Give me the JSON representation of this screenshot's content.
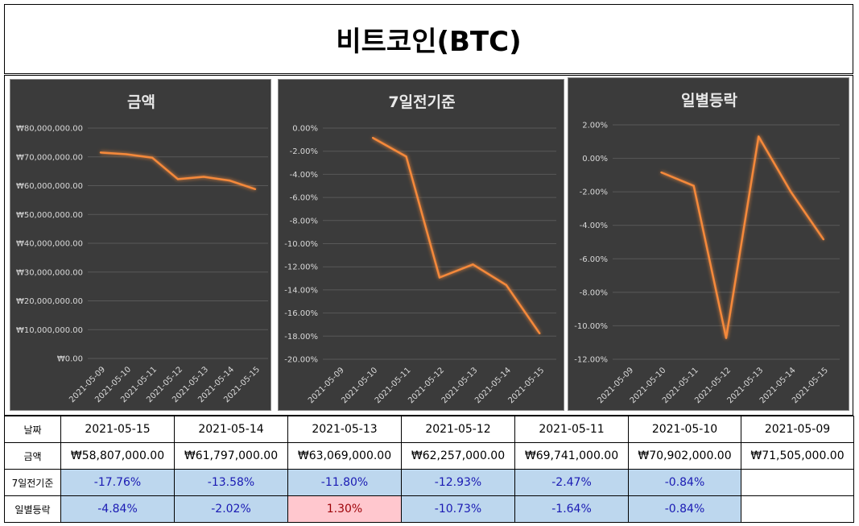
{
  "page_title": "비트코인(BTC)",
  "table": {
    "date_label": "날짜",
    "amount_label": "금액",
    "week_label": "7일전기준",
    "daily_label": "일별등락",
    "dates": [
      "2021-05-15",
      "2021-05-14",
      "2021-05-13",
      "2021-05-12",
      "2021-05-11",
      "2021-05-10",
      "2021-05-09"
    ],
    "amounts": [
      "₩58,807,000.00",
      "₩61,797,000.00",
      "₩63,069,000.00",
      "₩62,257,000.00",
      "₩69,741,000.00",
      "₩70,902,000.00",
      "₩71,505,000.00"
    ],
    "week_change": [
      "-17.76%",
      "-13.58%",
      "-11.80%",
      "-12.93%",
      "-2.47%",
      "-0.84%",
      ""
    ],
    "daily_change": [
      "-4.84%",
      "-2.02%",
      "1.30%",
      "-10.73%",
      "-1.64%",
      "-0.84%",
      ""
    ]
  },
  "colors": {
    "chart_bg": "#3b3b3b",
    "line": "#f5893a",
    "axis_text": "#d9d9d9",
    "grid": "#595959"
  },
  "chart_data": [
    {
      "type": "line",
      "title": "금액",
      "categories": [
        "2021-05-09",
        "2021-05-10",
        "2021-05-11",
        "2021-05-12",
        "2021-05-13",
        "2021-05-14",
        "2021-05-15"
      ],
      "values": [
        71505000,
        70902000,
        69741000,
        62257000,
        63069000,
        61797000,
        58807000
      ],
      "ylim": [
        0,
        80000000
      ],
      "ystep": 10000000,
      "y_tick_labels": [
        "₩0.00",
        "₩10,000,000.00",
        "₩20,000,000.00",
        "₩30,000,000.00",
        "₩40,000,000.00",
        "₩50,000,000.00",
        "₩60,000,000.00",
        "₩70,000,000.00",
        "₩80,000,000.00"
      ],
      "xlabel": "",
      "ylabel": ""
    },
    {
      "type": "line",
      "title": "7일전기준",
      "categories": [
        "2021-05-09",
        "2021-05-10",
        "2021-05-11",
        "2021-05-12",
        "2021-05-13",
        "2021-05-14",
        "2021-05-15"
      ],
      "values": [
        null,
        -0.84,
        -2.47,
        -12.93,
        -11.8,
        -13.58,
        -17.76
      ],
      "ylim": [
        -20,
        0
      ],
      "ystep": 2,
      "y_tick_labels": [
        "-20.00%",
        "-18.00%",
        "-16.00%",
        "-14.00%",
        "-12.00%",
        "-10.00%",
        "-8.00%",
        "-6.00%",
        "-4.00%",
        "-2.00%",
        "0.00%"
      ],
      "xlabel": "",
      "ylabel": ""
    },
    {
      "type": "line",
      "title": "일별등락",
      "categories": [
        "2021-05-09",
        "2021-05-10",
        "2021-05-11",
        "2021-05-12",
        "2021-05-13",
        "2021-05-14",
        "2021-05-15"
      ],
      "values": [
        null,
        -0.84,
        -1.64,
        -10.73,
        1.3,
        -2.02,
        -4.84
      ],
      "ylim": [
        -12,
        2
      ],
      "ystep": 2,
      "y_tick_labels": [
        "-12.00%",
        "-10.00%",
        "-8.00%",
        "-6.00%",
        "-4.00%",
        "-2.00%",
        "0.00%",
        "2.00%"
      ],
      "xlabel": "",
      "ylabel": ""
    }
  ]
}
